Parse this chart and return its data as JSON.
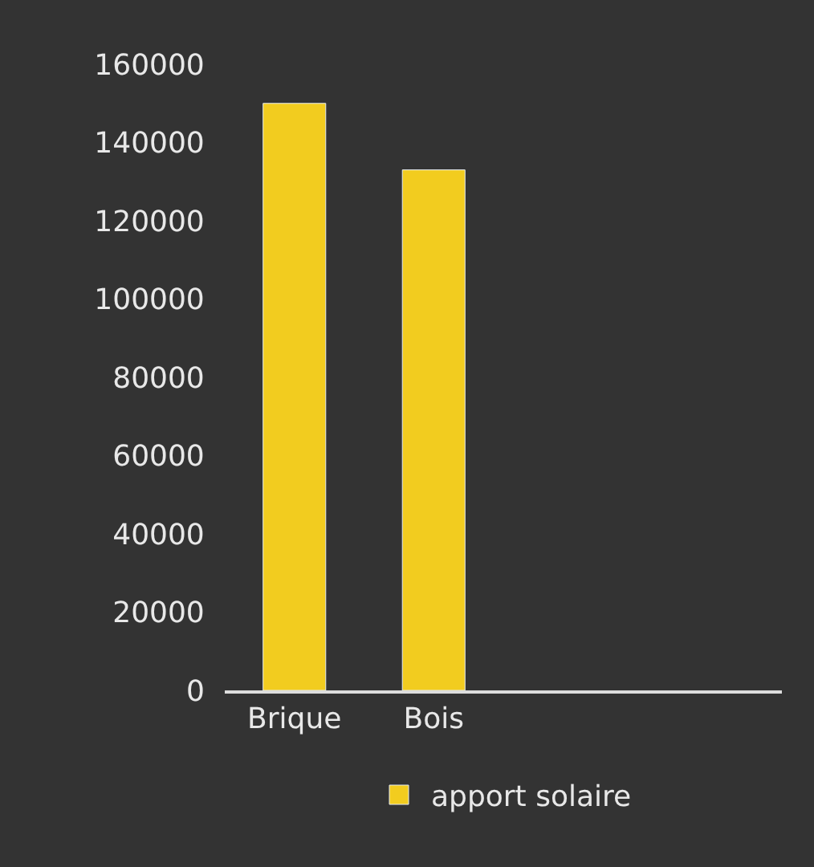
{
  "chart_data": {
    "type": "bar",
    "categories": [
      "Brique",
      "Bois",
      null,
      null
    ],
    "series": [
      {
        "name": "apport solaire",
        "color": "#f2cc1f",
        "values": [
          150000,
          133000,
          null,
          null
        ]
      }
    ],
    "ylim": [
      0,
      160000
    ],
    "yticks": [
      0,
      20000,
      40000,
      60000,
      80000,
      100000,
      120000,
      140000,
      160000
    ],
    "grid": false,
    "legend": "bottom"
  }
}
